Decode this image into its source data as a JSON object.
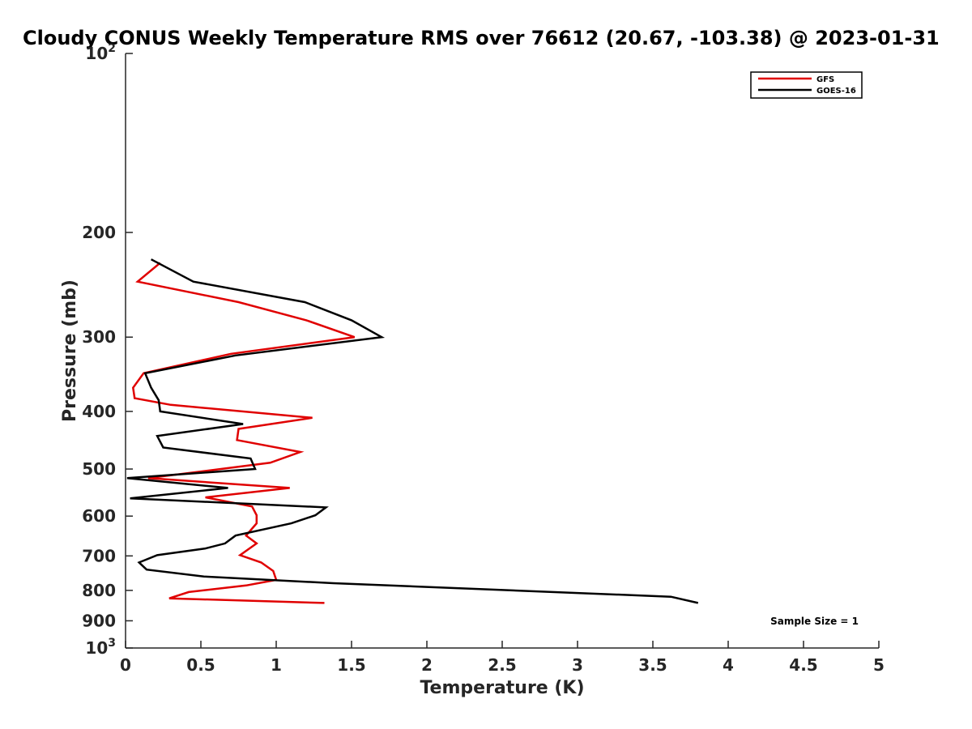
{
  "chart_data": {
    "type": "line",
    "title": "Cloudy CONUS Weekly Temperature RMS over 76612 (20.67, -103.38) @ 2023-01-31",
    "xlabel": "Temperature (K)",
    "ylabel": "Pressure (mb)",
    "xlim": [
      0,
      5
    ],
    "ylim": [
      100,
      1000
    ],
    "y_scale": "log",
    "y_reversed": true,
    "x_ticks": [
      0,
      0.5,
      1,
      1.5,
      2,
      2.5,
      3,
      3.5,
      4,
      4.5,
      5
    ],
    "x_tick_labels": [
      "0",
      "0.5",
      "1",
      "1.5",
      "2",
      "2.5",
      "3",
      "3.5",
      "4",
      "4.5",
      "5"
    ],
    "y_ticks": [
      100,
      200,
      300,
      400,
      500,
      600,
      700,
      800,
      900,
      1000
    ],
    "y_tick_labels": [
      {
        "base": "10",
        "exp": "2"
      },
      {
        "base": "200",
        "exp": ""
      },
      {
        "base": "300",
        "exp": ""
      },
      {
        "base": "400",
        "exp": ""
      },
      {
        "base": "500",
        "exp": ""
      },
      {
        "base": "600",
        "exp": ""
      },
      {
        "base": "700",
        "exp": ""
      },
      {
        "base": "800",
        "exp": ""
      },
      {
        "base": "900",
        "exp": ""
      },
      {
        "base": "10",
        "exp": "3"
      }
    ],
    "legend_position": "top-right",
    "annotation": "Sample Size = 1",
    "series": [
      {
        "name": "GFS",
        "color": "#e00000",
        "points": [
          [
            0.23,
            225
          ],
          [
            0.08,
            242
          ],
          [
            0.75,
            262
          ],
          [
            1.2,
            281
          ],
          [
            1.52,
            300
          ],
          [
            0.7,
            320
          ],
          [
            0.12,
            345
          ],
          [
            0.05,
            365
          ],
          [
            0.06,
            380
          ],
          [
            0.3,
            390
          ],
          [
            1.24,
            410
          ],
          [
            0.75,
            428
          ],
          [
            0.74,
            447
          ],
          [
            1.16,
            468
          ],
          [
            0.96,
            488
          ],
          [
            0.15,
            518
          ],
          [
            1.09,
            538
          ],
          [
            0.53,
            558
          ],
          [
            0.84,
            578
          ],
          [
            0.87,
            598
          ],
          [
            0.87,
            617
          ],
          [
            0.8,
            647
          ],
          [
            0.87,
            667
          ],
          [
            0.76,
            698
          ],
          [
            0.9,
            718
          ],
          [
            0.98,
            742
          ],
          [
            1.0,
            768
          ],
          [
            0.8,
            785
          ],
          [
            0.42,
            805
          ],
          [
            0.29,
            825
          ],
          [
            1.32,
            840
          ]
        ]
      },
      {
        "name": "GOES-16",
        "color": "#000000",
        "points": [
          [
            0.17,
            222
          ],
          [
            0.45,
            242
          ],
          [
            1.19,
            262
          ],
          [
            1.5,
            281
          ],
          [
            1.7,
            300
          ],
          [
            0.73,
            322
          ],
          [
            0.13,
            345
          ],
          [
            0.17,
            365
          ],
          [
            0.22,
            383
          ],
          [
            0.23,
            400
          ],
          [
            0.78,
            420
          ],
          [
            0.21,
            440
          ],
          [
            0.25,
            460
          ],
          [
            0.83,
            480
          ],
          [
            0.86,
            500
          ],
          [
            0.01,
            518
          ],
          [
            0.68,
            538
          ],
          [
            0.03,
            560
          ],
          [
            1.33,
            580
          ],
          [
            1.26,
            598
          ],
          [
            1.1,
            617
          ],
          [
            0.73,
            647
          ],
          [
            0.66,
            667
          ],
          [
            0.53,
            680
          ],
          [
            0.21,
            698
          ],
          [
            0.09,
            718
          ],
          [
            0.14,
            738
          ],
          [
            0.52,
            758
          ],
          [
            1.38,
            778
          ],
          [
            3.62,
            820
          ],
          [
            3.8,
            840
          ]
        ]
      }
    ]
  }
}
